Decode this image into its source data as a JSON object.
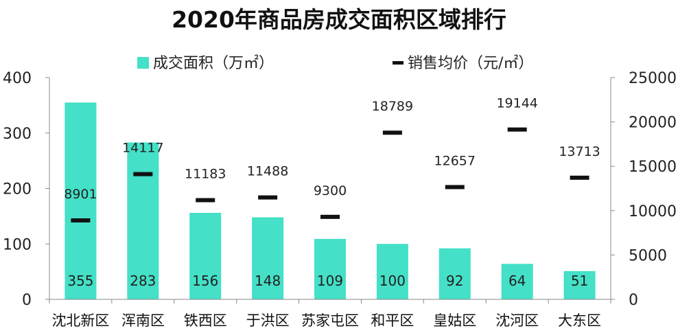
{
  "title": "2020年商品房成交面积区域排行",
  "legend": {
    "area": "成交面积（万㎡）",
    "price": "销售均价（元/㎡）"
  },
  "colors": {
    "bar": "#44e0c7",
    "price_mark": "#111111",
    "axis": "#888888"
  },
  "chart_data": {
    "type": "bar",
    "categories": [
      "沈北新区",
      "浑南区",
      "铁西区",
      "于洪区",
      "苏家屯区",
      "和平区",
      "皇姑区",
      "沈河区",
      "大东区"
    ],
    "series": [
      {
        "name": "成交面积（万㎡）",
        "type": "bar",
        "axis": "left",
        "values": [
          355,
          283,
          156,
          148,
          109,
          100,
          92,
          64,
          51
        ]
      },
      {
        "name": "销售均价（元/㎡）",
        "type": "marker",
        "axis": "right",
        "values": [
          8901,
          14117,
          11183,
          11488,
          9300,
          18789,
          12657,
          19144,
          13713
        ]
      }
    ],
    "y_left": {
      "range": [
        0,
        400
      ],
      "ticks": [
        "0",
        "100",
        "200",
        "300",
        "400"
      ]
    },
    "y_right": {
      "range": [
        0,
        25000
      ],
      "ticks": [
        "0",
        "5000",
        "10000",
        "15000",
        "20000",
        "25000"
      ]
    },
    "grid": false,
    "legend_position": "top"
  }
}
